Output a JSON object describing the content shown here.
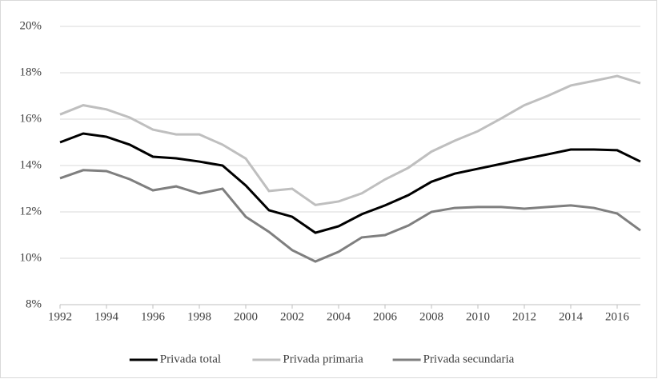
{
  "chart_data": {
    "type": "line",
    "x": [
      1992,
      1993,
      1994,
      1995,
      1996,
      1997,
      1998,
      1999,
      2000,
      2001,
      2002,
      2003,
      2004,
      2005,
      2006,
      2007,
      2008,
      2009,
      2010,
      2011,
      2012,
      2013,
      2014,
      2015,
      2016,
      2017
    ],
    "series": [
      {
        "name": "Privada total",
        "color": "#000000",
        "values": [
          15.0,
          15.38,
          15.24,
          14.9,
          14.38,
          14.31,
          14.17,
          14.0,
          13.14,
          12.07,
          11.79,
          11.1,
          11.38,
          11.9,
          12.28,
          12.72,
          13.3,
          13.65,
          13.86,
          14.07,
          14.28,
          14.48,
          14.69,
          14.69,
          14.66,
          14.17
        ]
      },
      {
        "name": "Privada primaria",
        "color": "#bfbfbf",
        "values": [
          16.2,
          16.6,
          16.42,
          16.07,
          15.55,
          15.34,
          15.34,
          14.9,
          14.3,
          12.9,
          13.0,
          12.3,
          12.45,
          12.8,
          13.4,
          13.9,
          14.6,
          15.07,
          15.48,
          16.03,
          16.6,
          17.0,
          17.45,
          17.65,
          17.86,
          17.55
        ]
      },
      {
        "name": "Privada secundaria",
        "color": "#7f7f7f",
        "values": [
          13.45,
          13.8,
          13.76,
          13.41,
          12.93,
          13.1,
          12.79,
          13.0,
          11.79,
          11.14,
          10.35,
          9.86,
          10.28,
          10.9,
          11.0,
          11.41,
          12.0,
          12.17,
          12.21,
          12.21,
          12.14,
          12.21,
          12.28,
          12.17,
          11.93,
          11.2
        ]
      }
    ],
    "xlim": [
      1992,
      2017
    ],
    "xticks": [
      1992,
      1994,
      1996,
      1998,
      2000,
      2002,
      2004,
      2006,
      2008,
      2010,
      2012,
      2014,
      2016
    ],
    "ylim": [
      8,
      20
    ],
    "yticks": [
      {
        "value": 8,
        "label": "8%"
      },
      {
        "value": 10,
        "label": "10%"
      },
      {
        "value": 12,
        "label": "12%"
      },
      {
        "value": 14,
        "label": "14%"
      },
      {
        "value": 16,
        "label": "16%"
      },
      {
        "value": 18,
        "label": "18%"
      },
      {
        "value": 20,
        "label": "20%"
      }
    ],
    "grid": true,
    "legend": "bottom"
  }
}
